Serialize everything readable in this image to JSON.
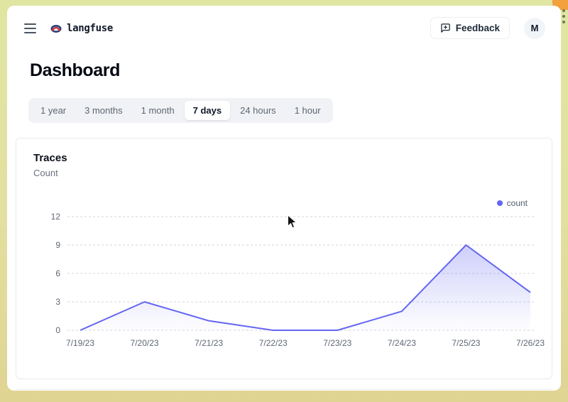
{
  "header": {
    "brand": "langfuse",
    "feedback_label": "Feedback",
    "avatar_initial": "M"
  },
  "page": {
    "title": "Dashboard"
  },
  "tabs": {
    "items": [
      "1 year",
      "3 months",
      "1 month",
      "7 days",
      "24 hours",
      "1 hour"
    ],
    "active": "7 days"
  },
  "card": {
    "title": "Traces",
    "subtitle": "Count"
  },
  "chart_data": {
    "type": "area",
    "title": "Traces",
    "subtitle": "Count",
    "x": [
      "7/19/23",
      "7/20/23",
      "7/21/23",
      "7/22/23",
      "7/23/23",
      "7/24/23",
      "7/25/23",
      "7/26/23"
    ],
    "series": [
      {
        "name": "count",
        "values": [
          0,
          3,
          1,
          0,
          0,
          2,
          9,
          4
        ]
      }
    ],
    "xlabel": "",
    "ylabel": "",
    "ylim": [
      0,
      12
    ],
    "yticks": [
      0,
      3,
      6,
      9,
      12
    ],
    "grid": true,
    "grid_style": "dashed",
    "legend_position": "top-right",
    "line_color": "#6366f1",
    "fill_color": "#6366f1"
  },
  "icons": {
    "menu": "hamburger",
    "brand_logo": "knot",
    "feedback": "message-square-plus",
    "cursor": "arrow-pointer"
  },
  "colors": {
    "accent": "#6366f1",
    "frame": "#e0e09c",
    "frame_accent": "#f2a13c",
    "tabbar_bg": "#f1f2f5",
    "muted_text": "#6b7280",
    "grid_line": "#d4d6db"
  }
}
